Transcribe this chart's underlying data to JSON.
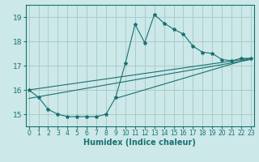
{
  "xlabel": "Humidex (Indice chaleur)",
  "bg_color": "#cce8e8",
  "grid_color": "#aacccc",
  "line_color": "#1a7070",
  "xlim": [
    -0.3,
    23.3
  ],
  "ylim": [
    14.5,
    19.5
  ],
  "yticks": [
    15,
    16,
    17,
    18,
    19
  ],
  "xticks": [
    0,
    1,
    2,
    3,
    4,
    5,
    6,
    7,
    8,
    9,
    10,
    11,
    12,
    13,
    14,
    15,
    16,
    17,
    18,
    19,
    20,
    21,
    22,
    23
  ],
  "line_main_x": [
    0,
    1,
    2,
    3,
    4,
    5,
    6,
    7,
    8,
    9,
    10,
    11,
    12,
    13,
    14,
    15,
    16,
    17,
    18,
    19,
    20,
    21,
    22,
    23
  ],
  "line_main_y": [
    16.0,
    15.7,
    15.2,
    15.0,
    14.9,
    14.9,
    14.9,
    14.9,
    15.0,
    15.7,
    17.1,
    18.7,
    17.95,
    19.1,
    18.75,
    18.5,
    18.3,
    17.8,
    17.55,
    17.5,
    17.25,
    17.2,
    17.3,
    17.3
  ],
  "trend1_x": [
    0,
    23
  ],
  "trend1_y": [
    16.0,
    17.3
  ],
  "trend2_x": [
    0,
    23
  ],
  "trend2_y": [
    15.65,
    17.25
  ],
  "trend3_x": [
    9,
    23
  ],
  "trend3_y": [
    15.65,
    17.3
  ]
}
